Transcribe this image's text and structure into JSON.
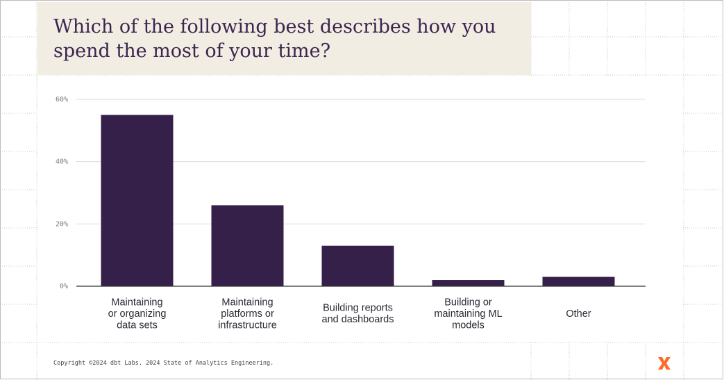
{
  "title": [
    "Which of the following best describes how you",
    "spend the most of your time?"
  ],
  "chart_data": {
    "type": "bar",
    "categories": [
      [
        "Maintaining",
        "or organizing",
        "data sets"
      ],
      [
        "Maintaining",
        "platforms or",
        "infrastructure"
      ],
      [
        "Building reports",
        "and dashboards"
      ],
      [
        "Building or",
        "maintaining ML",
        "models"
      ],
      [
        "Other"
      ]
    ],
    "values": [
      55,
      26,
      13,
      2,
      3
    ],
    "color": "#35204a",
    "ylim": [
      0,
      60
    ],
    "yticks": [
      {
        "value": 0,
        "label": "0%"
      },
      {
        "value": 20,
        "label": "20%"
      },
      {
        "value": 40,
        "label": "40%"
      },
      {
        "value": 60,
        "label": "60%"
      }
    ],
    "grid": true
  },
  "footer": "Copyright ©2024 dbt Labs. 2024 State of Analytics Engineering."
}
